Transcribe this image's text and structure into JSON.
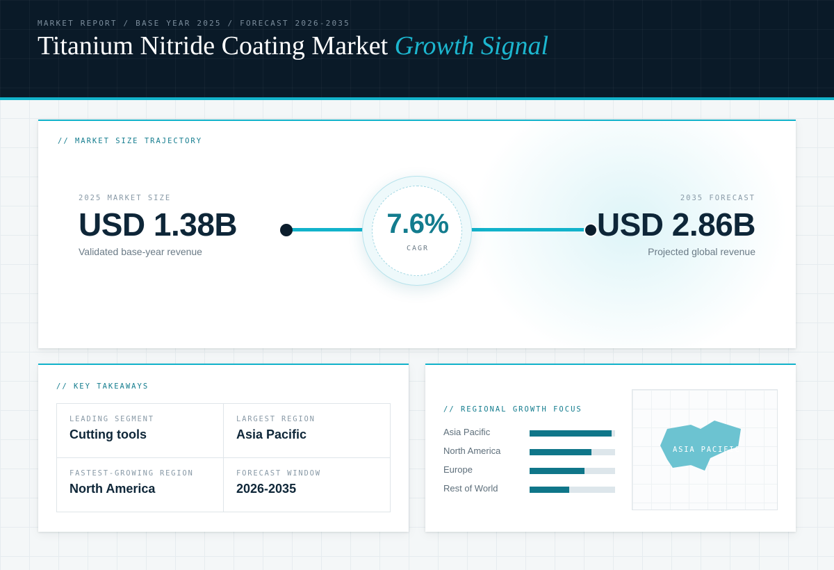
{
  "header": {
    "eyebrow": "MARKET REPORT / BASE YEAR 2025 / FORECAST 2026-2035",
    "title_main": "Titanium Nitride Coating Market ",
    "title_accent": "Growth Signal"
  },
  "trajectory": {
    "label": "// MARKET SIZE TRAJECTORY",
    "base": {
      "caption": "2025 MARKET SIZE",
      "value": "USD 1.38B",
      "sub": "Validated base-year revenue"
    },
    "cagr": {
      "value": "7.6%",
      "caption": "CAGR"
    },
    "forecast": {
      "caption": "2035 FORECAST",
      "value": "USD 2.86B",
      "sub": "Projected global revenue"
    }
  },
  "takeaways": {
    "label": "// KEY TAKEAWAYS",
    "items": [
      {
        "caption": "LEADING SEGMENT",
        "value": "Cutting tools"
      },
      {
        "caption": "LARGEST REGION",
        "value": "Asia Pacific"
      },
      {
        "caption": "FASTEST-GROWING REGION",
        "value": "North America"
      },
      {
        "caption": "FORECAST WINDOW",
        "value": "2026-2035"
      }
    ]
  },
  "regional": {
    "label": "// REGIONAL GROWTH FOCUS",
    "bars": [
      {
        "name": "Asia Pacific",
        "level": 0.96
      },
      {
        "name": "North America",
        "level": 0.72
      },
      {
        "name": "Europe",
        "level": 0.64
      },
      {
        "name": "Rest of World",
        "level": 0.46
      }
    ],
    "map_label": "ASIA PACIFIC",
    "map_color": "#6cc3d1"
  },
  "colors": {
    "accent": "#12b3cb",
    "bar": "#0f7689",
    "header_bg": "#0a1a28"
  }
}
